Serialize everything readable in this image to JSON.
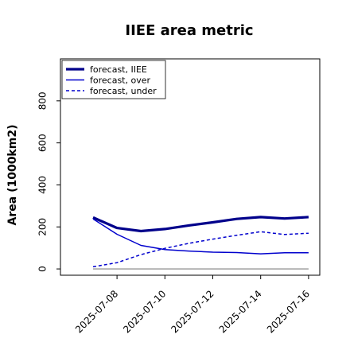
{
  "chart_data": {
    "type": "line",
    "title": "IIEE area metric",
    "ylabel": "Area (1000km2)",
    "xlabel": "",
    "x": [
      "2025-07-07",
      "2025-07-08",
      "2025-07-09",
      "2025-07-10",
      "2025-07-11",
      "2025-07-12",
      "2025-07-13",
      "2025-07-14",
      "2025-07-15",
      "2025-07-16"
    ],
    "x_tick_labels": [
      "2025-07-08",
      "2025-07-10",
      "2025-07-12",
      "2025-07-14",
      "2025-07-16"
    ],
    "x_tick_colors": [
      "#228B22",
      "#000000",
      "#000000",
      "#000000",
      "#000000"
    ],
    "ylim": [
      -30,
      1000
    ],
    "y_ticks": [
      0,
      200,
      400,
      600,
      800
    ],
    "grid": false,
    "legend_position": "top-left",
    "series": [
      {
        "name": "forecast, IIEE",
        "color": "#00008B",
        "style": "thick-solid",
        "values": [
          245,
          195,
          180,
          190,
          207,
          222,
          238,
          247,
          240,
          247
        ]
      },
      {
        "name": "forecast, over",
        "color": "#0000CD",
        "style": "solid",
        "values": [
          238,
          165,
          112,
          92,
          85,
          80,
          78,
          72,
          77,
          77
        ]
      },
      {
        "name": "forecast, under",
        "color": "#0000CD",
        "style": "dashed",
        "values": [
          10,
          30,
          68,
          98,
          122,
          142,
          160,
          177,
          164,
          170
        ]
      }
    ],
    "zero_line_color": "#808080"
  }
}
